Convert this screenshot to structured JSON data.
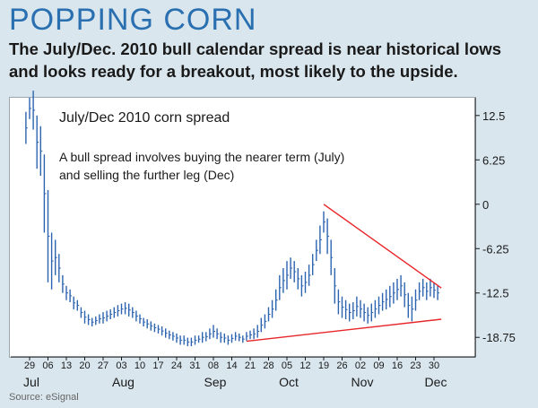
{
  "headline": "POPPING CORN",
  "subhead": "The July/Dec. 2010 bull calendar spread is near historical lows and looks ready for a breakout, most likely to the upside.",
  "source": "Source: eSignal",
  "chart_data": {
    "type": "ohlc",
    "title": "July/Dec 2010 corn spread",
    "annotation_lines": [
      "A bull spread involves buying the nearer term (July)",
      "and selling the further leg (Dec)"
    ],
    "yticks": [
      {
        "label": "12.5",
        "value": 12.5
      },
      {
        "label": "6.25",
        "value": 6.25
      },
      {
        "label": "0",
        "value": 0
      },
      {
        "label": "-6.25",
        "value": -6.25
      },
      {
        "label": "-12.5",
        "value": -12.5
      },
      {
        "label": "-18.75",
        "value": -18.75
      }
    ],
    "ylim": [
      -21.5,
      15
    ],
    "x_ticks": [
      "29",
      "06",
      "13",
      "20",
      "27",
      "03",
      "10",
      "17",
      "24",
      "31",
      "08",
      "14",
      "21",
      "28",
      "05",
      "12",
      "19",
      "26",
      "02",
      "09",
      "16",
      "23",
      "30"
    ],
    "month_labels": [
      {
        "label": "Jul",
        "tick": 0
      },
      {
        "label": "Aug",
        "tick": 5
      },
      {
        "label": "Sep",
        "tick": 10
      },
      {
        "label": "Oct",
        "tick": 14
      },
      {
        "label": "Nov",
        "tick": 18
      },
      {
        "label": "Dec",
        "tick": 22
      }
    ],
    "bars_per_tick": 5,
    "bars": [
      [
        13,
        8.5
      ],
      [
        15,
        12
      ],
      [
        16,
        10.5
      ],
      [
        12.5,
        5
      ],
      [
        11,
        4
      ],
      [
        7,
        -4
      ],
      [
        2,
        -11
      ],
      [
        -4,
        -12
      ],
      [
        -5,
        -10
      ],
      [
        -7,
        -11
      ],
      [
        -10,
        -12.5
      ],
      [
        -11.5,
        -13.5
      ],
      [
        -12,
        -13.8
      ],
      [
        -13,
        -14.8
      ],
      [
        -13.5,
        -15
      ],
      [
        -14.5,
        -16
      ],
      [
        -15,
        -16.8
      ],
      [
        -15.5,
        -17
      ],
      [
        -16,
        -17.2
      ],
      [
        -15.8,
        -17
      ],
      [
        -15.5,
        -16.8
      ],
      [
        -15.2,
        -16.8
      ],
      [
        -15,
        -16.5
      ],
      [
        -14.8,
        -16.2
      ],
      [
        -14.5,
        -16
      ],
      [
        -14.2,
        -15.8
      ],
      [
        -14,
        -15.5
      ],
      [
        -13.8,
        -15.5
      ],
      [
        -14,
        -15.8
      ],
      [
        -14.5,
        -16
      ],
      [
        -15,
        -16.5
      ],
      [
        -15.5,
        -16.8
      ],
      [
        -16,
        -17.2
      ],
      [
        -16.2,
        -17.5
      ],
      [
        -16.5,
        -17.8
      ],
      [
        -16.8,
        -18
      ],
      [
        -17,
        -18.2
      ],
      [
        -17.2,
        -18.5
      ],
      [
        -17.5,
        -18.8
      ],
      [
        -17.8,
        -19
      ],
      [
        -18,
        -19.2
      ],
      [
        -18.2,
        -19.5
      ],
      [
        -18.5,
        -19.8
      ],
      [
        -18.5,
        -19.8
      ],
      [
        -18.8,
        -20
      ],
      [
        -18.8,
        -20
      ],
      [
        -18.5,
        -19.8
      ],
      [
        -18.5,
        -19.5
      ],
      [
        -18,
        -19.5
      ],
      [
        -18,
        -19.3
      ],
      [
        -17.5,
        -19
      ],
      [
        -17,
        -18.8
      ],
      [
        -17.5,
        -19
      ],
      [
        -18,
        -19.5
      ],
      [
        -18.2,
        -19.5
      ],
      [
        -18.5,
        -19.8
      ],
      [
        -18.3,
        -19.5
      ],
      [
        -18,
        -19.2
      ],
      [
        -18.2,
        -19.3
      ],
      [
        -18.5,
        -19.5
      ],
      [
        -18,
        -19.2
      ],
      [
        -17.8,
        -19
      ],
      [
        -17.5,
        -19
      ],
      [
        -17,
        -18.8
      ],
      [
        -16,
        -18
      ],
      [
        -15.5,
        -17.5
      ],
      [
        -14.5,
        -16.5
      ],
      [
        -13.5,
        -16
      ],
      [
        -12,
        -15
      ],
      [
        -10,
        -13.5
      ],
      [
        -9,
        -12.5
      ],
      [
        -8,
        -12
      ],
      [
        -7.5,
        -10.5
      ],
      [
        -8,
        -11
      ],
      [
        -9,
        -12
      ],
      [
        -10,
        -13
      ],
      [
        -9.5,
        -12.5
      ],
      [
        -8.5,
        -11.5
      ],
      [
        -7,
        -10
      ],
      [
        -5,
        -8
      ],
      [
        -3,
        -7
      ],
      [
        -1,
        -4
      ],
      [
        -2,
        -7
      ],
      [
        -5,
        -10
      ],
      [
        -9,
        -14
      ],
      [
        -12,
        -15.5
      ],
      [
        -13,
        -16
      ],
      [
        -13.5,
        -16.2
      ],
      [
        -14,
        -16.5
      ],
      [
        -13.8,
        -16.2
      ],
      [
        -13,
        -15.8
      ],
      [
        -13.5,
        -16
      ],
      [
        -14,
        -16.5
      ],
      [
        -14.5,
        -16.8
      ],
      [
        -14,
        -16.5
      ],
      [
        -13.5,
        -16
      ],
      [
        -13,
        -15.5
      ],
      [
        -12.5,
        -15
      ],
      [
        -12,
        -14.8
      ],
      [
        -11.5,
        -14.5
      ],
      [
        -11,
        -14
      ],
      [
        -10.5,
        -13.5
      ],
      [
        -10,
        -13
      ],
      [
        -11,
        -14.5
      ],
      [
        -12.5,
        -16
      ],
      [
        -13,
        -16.5
      ],
      [
        -12,
        -15
      ],
      [
        -11,
        -13.5
      ],
      [
        -10.5,
        -13
      ],
      [
        -11,
        -13.5
      ],
      [
        -10.5,
        -13
      ],
      [
        -11,
        -13.2
      ],
      [
        -11.5,
        -13.5
      ]
    ],
    "trendlines": [
      {
        "name": "upper",
        "from": [
          81,
          0
        ],
        "to": [
          113,
          -11.8
        ]
      },
      {
        "name": "lower",
        "from": [
          60,
          -19.3
        ],
        "to": [
          113,
          -16.2
        ]
      }
    ],
    "colors": {
      "bars": "#2c64b0",
      "trendline": "#e8262a",
      "axis": "#1a1a1a",
      "headline": "#2a6fb0"
    }
  }
}
